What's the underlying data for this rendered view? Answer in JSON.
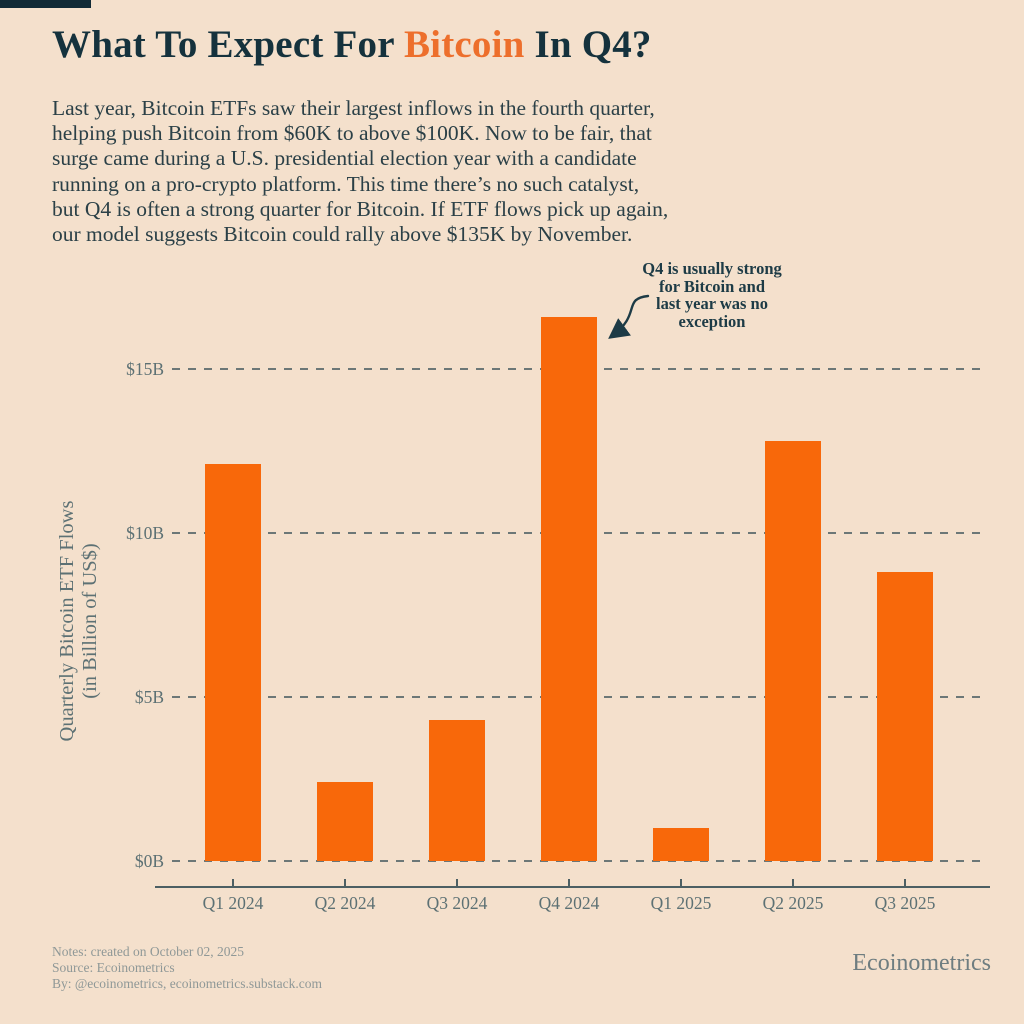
{
  "page": {
    "background_color": "#f4e0cc",
    "accent_orange": "#f8680a",
    "dark_navy": "#15323d"
  },
  "header": {
    "title_prefix": "What To Expect For ",
    "title_highlight": "Bitcoin",
    "title_suffix": " In Q4?"
  },
  "intro": {
    "lines": [
      "Last year, Bitcoin ETFs saw their largest inflows in the fourth quarter,",
      "helping push Bitcoin from $60K to above $100K. Now to be fair, that",
      "surge came during a U.S. presidential election year with a candidate",
      "running on a pro-crypto platform. This time there’s no such catalyst,",
      "but Q4 is often a strong quarter for Bitcoin. If ETF flows pick up again,",
      "our model suggests Bitcoin could rally above $135K by November."
    ]
  },
  "annotation": {
    "text": "Q4 is usually strong\nfor Bitcoin and\nlast year was no\nexception"
  },
  "chart_data": {
    "type": "bar",
    "categories": [
      "Q1 2024",
      "Q2 2024",
      "Q3 2024",
      "Q4 2024",
      "Q1 2025",
      "Q2 2025",
      "Q3 2025"
    ],
    "values": [
      12.1,
      2.4,
      4.3,
      16.6,
      1.0,
      12.8,
      8.8
    ],
    "title": "",
    "xlabel": "",
    "ylabel": "Quarterly Bitcoin ETF Flows\n(in Billion of US$)",
    "yticks": [
      0,
      5,
      10,
      15
    ],
    "ytick_labels": [
      "$0B",
      "$5B",
      "$10B",
      "$15B"
    ],
    "ylim": [
      0,
      17
    ],
    "grid": "horizontal-dashed",
    "legend": "none",
    "bar_color": "#f8680a",
    "annotation": "Q4 is usually strong for Bitcoin and last year was no exception (points at Q4 2024 bar)"
  },
  "footer": {
    "notes": [
      "Notes: created on October 02, 2025",
      "Source: Ecoinometrics",
      "By: @ecoinometrics, ecoinometrics.substack.com"
    ],
    "brand": "Ecoinometrics"
  }
}
